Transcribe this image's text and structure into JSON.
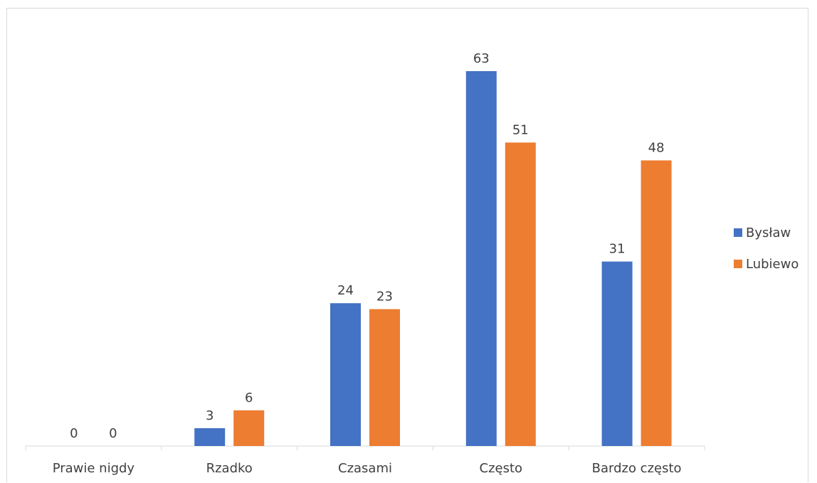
{
  "chart_data": {
    "type": "bar",
    "categories": [
      "Prawie nigdy",
      "Rzadko",
      "Czasami",
      "Często",
      "Bardzo często"
    ],
    "series": [
      {
        "name": "Bysław",
        "values": [
          0,
          3,
          24,
          63,
          31
        ],
        "color": "#4472c4"
      },
      {
        "name": "Lubiewo",
        "values": [
          0,
          6,
          23,
          51,
          48
        ],
        "color": "#ed7d31"
      }
    ],
    "ylim": [
      0,
      70
    ],
    "grid": false,
    "legend": "right"
  }
}
